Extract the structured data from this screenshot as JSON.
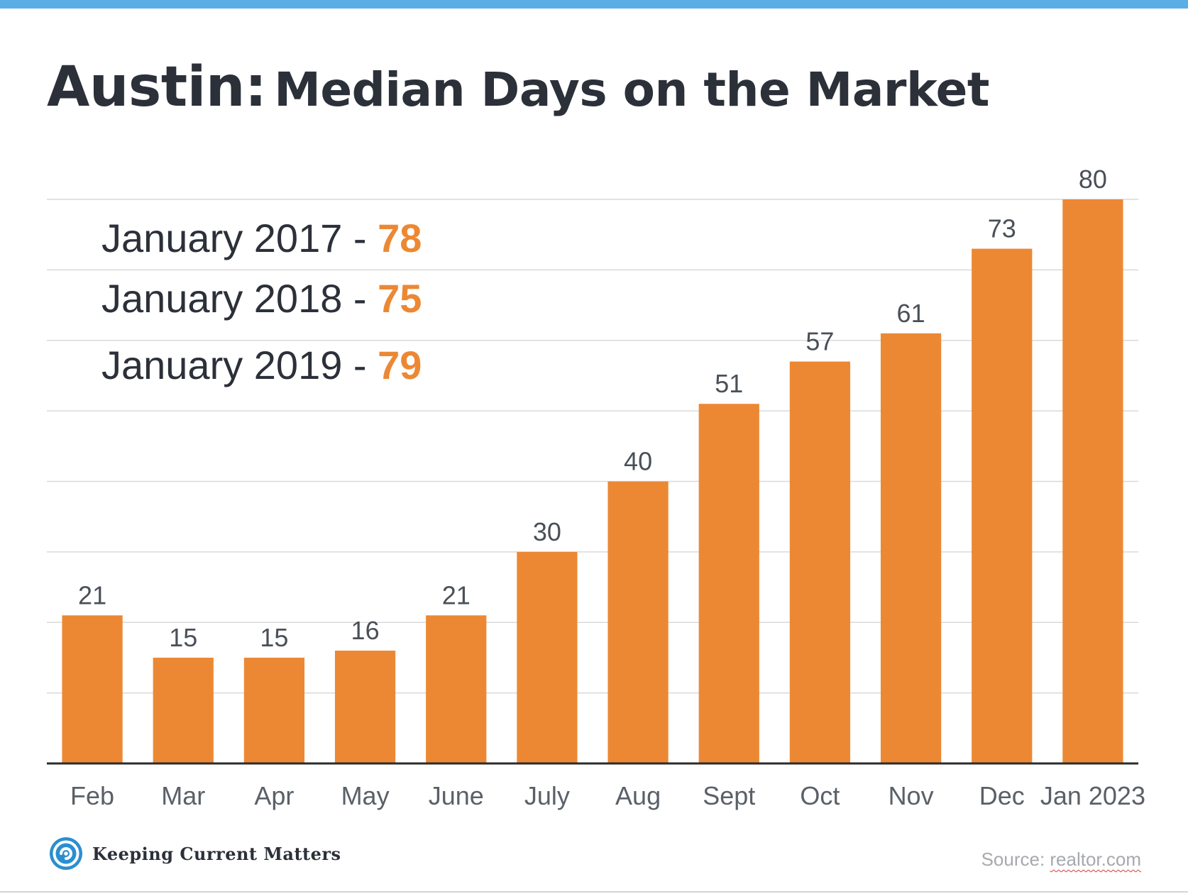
{
  "title": {
    "city": "Austin:",
    "rest": "Median Days on the Market"
  },
  "history": [
    {
      "label": "January 2017 - ",
      "value": "78"
    },
    {
      "label": "January 2018 - ",
      "value": "75"
    },
    {
      "label": "January 2019 - ",
      "value": "79"
    }
  ],
  "chart_data": {
    "type": "bar",
    "title": "Austin: Median Days on the Market",
    "categories": [
      "Feb",
      "Mar",
      "Apr",
      "May",
      "June",
      "July",
      "Aug",
      "Sept",
      "Oct",
      "Nov",
      "Dec",
      "Jan 2023"
    ],
    "values": [
      21,
      15,
      15,
      16,
      21,
      30,
      40,
      51,
      57,
      61,
      73,
      80
    ],
    "ylim": [
      0,
      80
    ],
    "grid": true,
    "bar_color": "#ec8834",
    "data_labels": true
  },
  "footer": {
    "logo_icon": "swirl-icon",
    "logo_text": "Keeping Current Matters",
    "source_prefix": "Source: ",
    "source_link": "realtor.com"
  },
  "colors": {
    "accent_bar": "#5aaee6",
    "bar": "#ec8834",
    "highlight": "#ec8834",
    "text": "#2b3039"
  }
}
